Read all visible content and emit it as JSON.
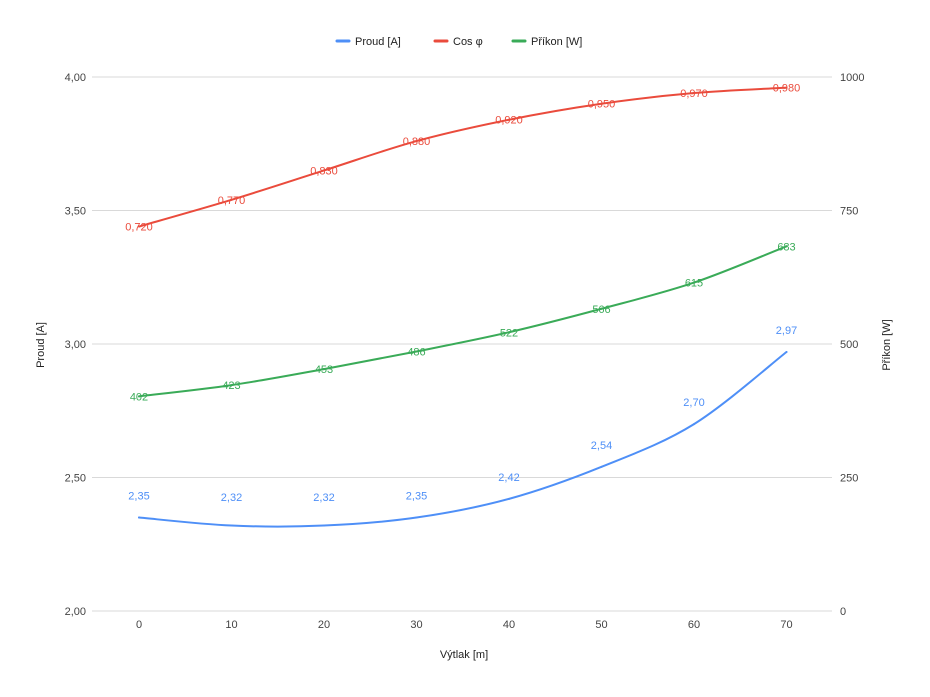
{
  "chart_data": {
    "type": "line",
    "x": [
      0,
      10,
      20,
      30,
      40,
      50,
      60,
      70
    ],
    "xlabel": "Výtlak [m]",
    "ylabel_left": "Proud [A]",
    "ylabel_right": "Příkon [W]",
    "ylim_left": [
      2.0,
      4.0
    ],
    "ylim_right": [
      0,
      1000
    ],
    "yticks_left": [
      "2,00",
      "2,50",
      "3,00",
      "3,50",
      "4,00"
    ],
    "yticks_right": [
      "0",
      "250",
      "500",
      "750",
      "1000"
    ],
    "xticks": [
      "0",
      "10",
      "20",
      "30",
      "40",
      "50",
      "60",
      "70"
    ],
    "grid": true,
    "legend_position": "top",
    "series": [
      {
        "name": "Proud [A]",
        "axis": "left",
        "color": "#4e8ff7",
        "values": [
          2.35,
          2.32,
          2.32,
          2.35,
          2.42,
          2.54,
          2.7,
          2.97
        ],
        "labels": [
          "2,35",
          "2,32",
          "2,32",
          "2,35",
          "2,42",
          "2,54",
          "2,70",
          "2,97"
        ]
      },
      {
        "name": "Cos φ",
        "axis": "left",
        "color": "#ea4b3c",
        "values": [
          3.44,
          3.54,
          3.65,
          3.76,
          3.84,
          3.9,
          3.94,
          3.96
        ],
        "labels": [
          "0,720",
          "0,770",
          "0,830",
          "0,880",
          "0,920",
          "0,950",
          "0,970",
          "0,980"
        ]
      },
      {
        "name": "Příkon [W]",
        "axis": "right",
        "color": "#3aab58",
        "values": [
          402,
          423,
          453,
          486,
          522,
          566,
          615,
          683
        ],
        "labels": [
          "402",
          "423",
          "453",
          "486",
          "522",
          "566",
          "615",
          "683"
        ]
      }
    ]
  }
}
